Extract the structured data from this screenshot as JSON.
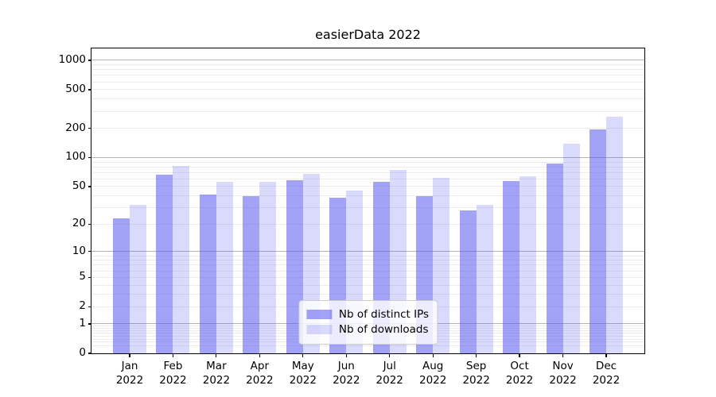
{
  "title": "easierData 2022",
  "chart_data": {
    "type": "bar",
    "title": "easierData 2022",
    "categories": [
      "Jan 2022",
      "Feb 2022",
      "Mar 2022",
      "Apr 2022",
      "May 2022",
      "Jun 2022",
      "Jul 2022",
      "Aug 2022",
      "Sep 2022",
      "Oct 2022",
      "Nov 2022",
      "Dec 2022"
    ],
    "series": [
      {
        "name": "Nb of distinct IPs",
        "color": "rgba(85,85,240,0.55)",
        "values": [
          23,
          66,
          41,
          40,
          58,
          38,
          56,
          40,
          28,
          57,
          87,
          195
        ]
      },
      {
        "name": "Nb of downloads",
        "color": "rgba(85,85,240,0.22)",
        "values": [
          32,
          82,
          56,
          56,
          68,
          45,
          74,
          62,
          32,
          64,
          140,
          265
        ]
      }
    ],
    "xlabel": "",
    "ylabel": "",
    "yscale": "log1p",
    "ylim": [
      0,
      1300
    ],
    "y_ticks": [
      1000,
      500,
      200,
      100,
      50,
      20,
      10,
      5,
      2,
      1,
      0
    ],
    "grid": true,
    "legend_position": "lower center"
  },
  "colors": {
    "background": "#ffffff",
    "spine": "#000000",
    "grid_major": "#b3b3b3",
    "grid_minor": "#ececec",
    "text": "#000000",
    "legend_border": "#cccccc",
    "legend_bg": "rgba(255,255,255,0.8)"
  }
}
